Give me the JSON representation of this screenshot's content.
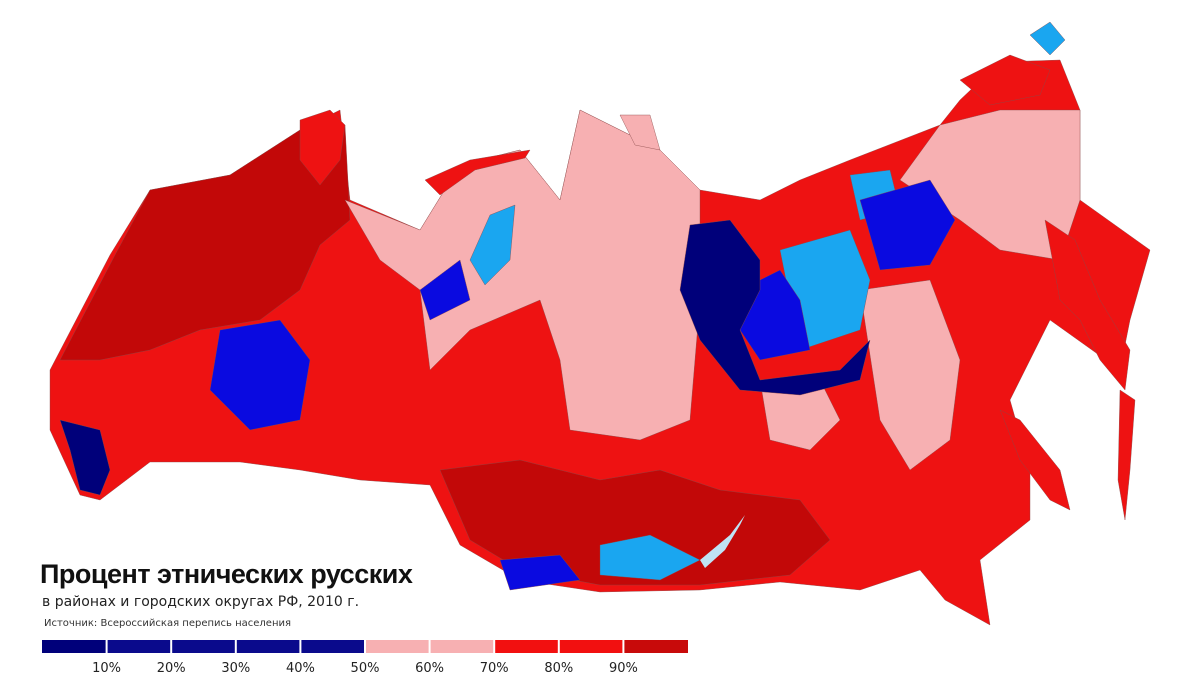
{
  "title": "Процент этнических русских",
  "subtitle": "в районах и городских округах РФ, 2010 г.",
  "source": "Источник: Всероссийская перепись населения",
  "legend": {
    "bins": [
      0,
      10,
      30,
      50,
      70,
      90,
      100
    ],
    "colors": [
      "#00007a",
      "#0a0a8c",
      "#0a0a8c",
      "#f7b0b2",
      "#f21010",
      "#c80a0a"
    ],
    "ticks": [
      {
        "value": 10,
        "label": "10%"
      },
      {
        "value": 20,
        "label": "20%"
      },
      {
        "value": 30,
        "label": "30%"
      },
      {
        "value": 40,
        "label": "40%"
      },
      {
        "value": 50,
        "label": "50%"
      },
      {
        "value": 60,
        "label": "60%"
      },
      {
        "value": 70,
        "label": "70%"
      },
      {
        "value": 80,
        "label": "80%"
      },
      {
        "value": 90,
        "label": "90%"
      }
    ]
  }
}
